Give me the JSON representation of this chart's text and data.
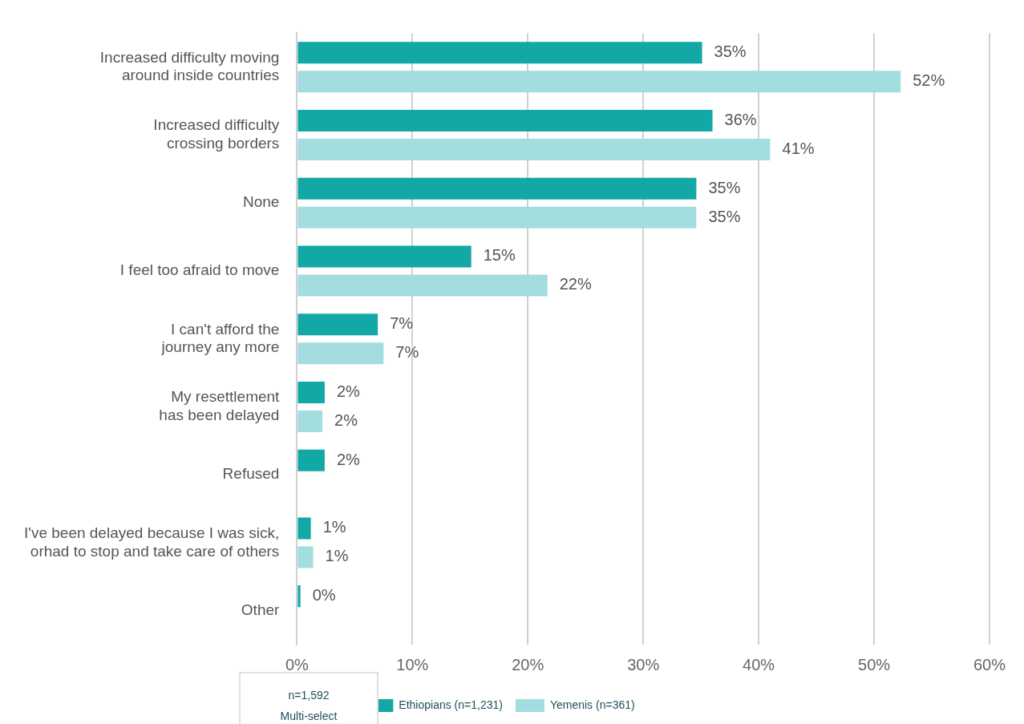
{
  "chart_data": {
    "type": "bar",
    "orientation": "horizontal",
    "categories": [
      "Increased difficulty moving around inside countries",
      "Increased difficulty crossing borders",
      "None",
      "I feel too afraid to move",
      "I can't afford the journey any more",
      "My resettlement has been delayed",
      "Refused",
      "I've been delayed because I was sick, orhad to stop and take care of others",
      "Other"
    ],
    "series": [
      {
        "name": "Ethiopians (n=1,231)",
        "color": "#11a8a5",
        "values": [
          35.1,
          36.0,
          34.6,
          15.1,
          7.0,
          2.4,
          2.4,
          1.2,
          0.3
        ],
        "value_labels": [
          "35%",
          "36%",
          "35%",
          "15%",
          "7%",
          "2%",
          "2%",
          "1%",
          "0%"
        ]
      },
      {
        "name": "Yemenis (n=361)",
        "color": "#a3dde0",
        "values": [
          52.3,
          41.0,
          34.6,
          21.7,
          7.5,
          2.2,
          null,
          1.4,
          null
        ],
        "value_labels": [
          "52%",
          "41%",
          "35%",
          "22%",
          "7%",
          "2%",
          null,
          "1%",
          null
        ]
      }
    ],
    "xlim": [
      0,
      60
    ],
    "xticks": [
      {
        "value": 0,
        "label": "0%"
      },
      {
        "value": 10,
        "label": "10%"
      },
      {
        "value": 20,
        "label": "20%"
      },
      {
        "value": 30,
        "label": "30%"
      },
      {
        "value": 40,
        "label": "40%"
      },
      {
        "value": 50,
        "label": "50%"
      },
      {
        "value": 60,
        "label": "60%"
      }
    ],
    "grid": "x",
    "legend": "bottom",
    "annotations": [
      "n=1,592",
      "Multi-select"
    ]
  }
}
